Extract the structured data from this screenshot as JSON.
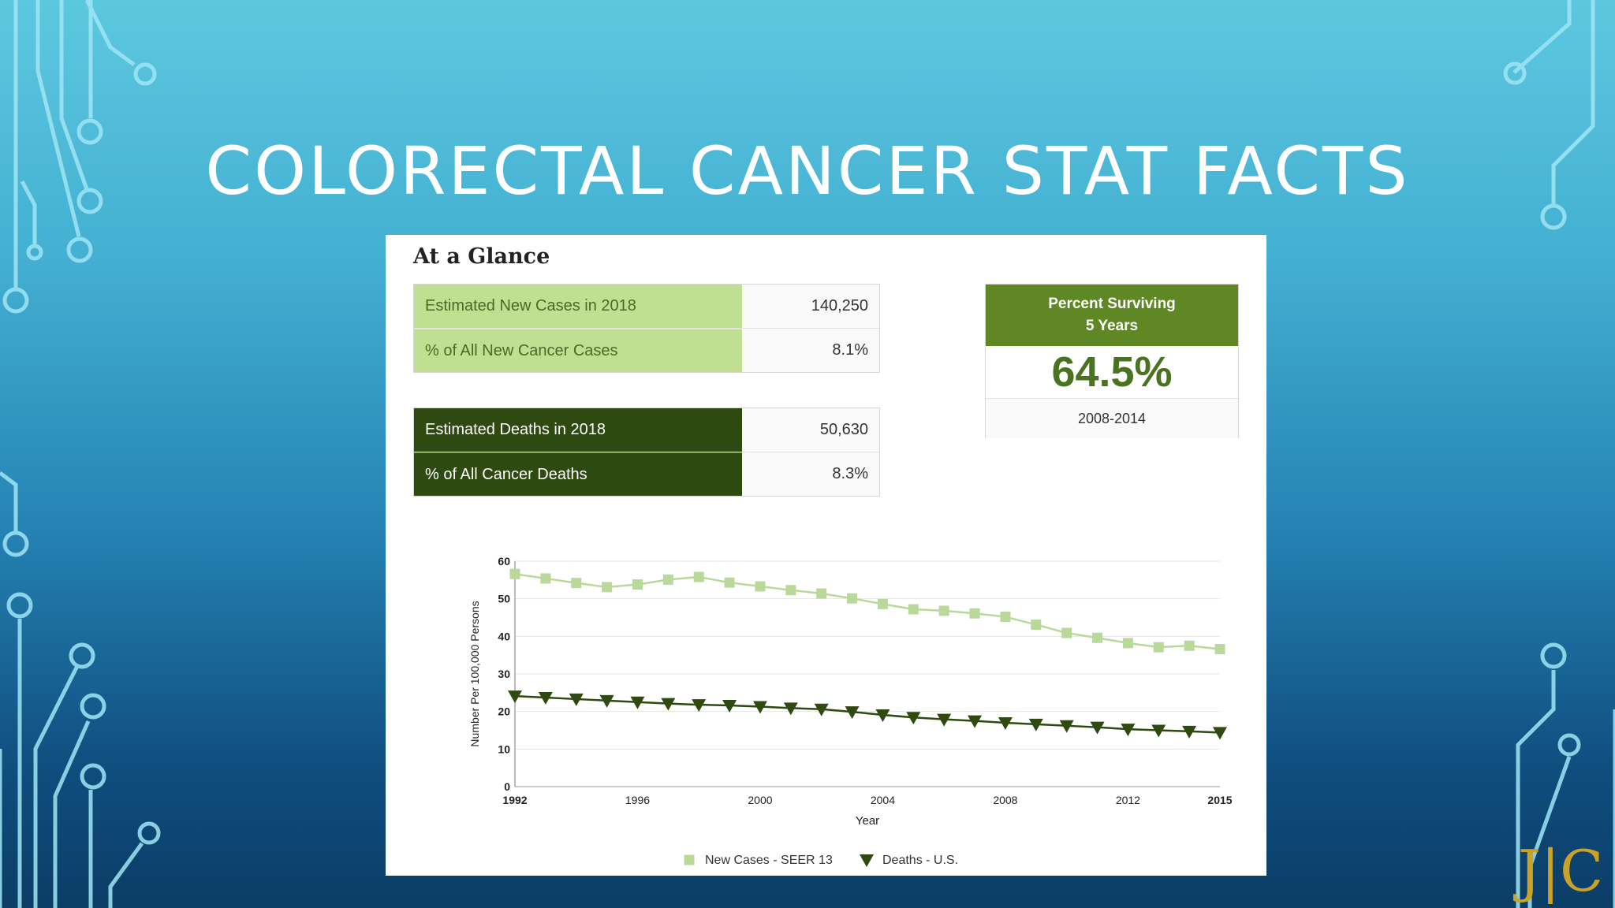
{
  "slide": {
    "title": "COLORECTAL CANCER STAT FACTS"
  },
  "panel": {
    "heading": "At a Glance",
    "new_cases_table": [
      {
        "label": "Estimated New Cases in 2018",
        "value": "140,250"
      },
      {
        "label": "% of All New Cancer Cases",
        "value": "8.1%"
      }
    ],
    "deaths_table": [
      {
        "label": "Estimated Deaths in 2018",
        "value": "50,630"
      },
      {
        "label": "% of All Cancer Deaths",
        "value": "8.3%"
      }
    ],
    "survival": {
      "heading_line1": "Percent Surviving",
      "heading_line2": "5 Years",
      "value": "64.5%",
      "period": "2008-2014"
    }
  },
  "chart_data": {
    "type": "line",
    "title": "",
    "xlabel": "Year",
    "ylabel": "Number Per 100,000 Persons",
    "xlim": [
      1992,
      2015
    ],
    "ylim": [
      0,
      60
    ],
    "x_ticks": [
      1992,
      1996,
      2000,
      2004,
      2008,
      2012,
      2015
    ],
    "y_ticks": [
      0,
      10,
      20,
      30,
      40,
      50,
      60
    ],
    "grid": true,
    "legend": "bottom",
    "x": [
      1992,
      1993,
      1994,
      1995,
      1996,
      1997,
      1998,
      1999,
      2000,
      2001,
      2002,
      2003,
      2004,
      2005,
      2006,
      2007,
      2008,
      2009,
      2010,
      2011,
      2012,
      2013,
      2014,
      2015
    ],
    "series": [
      {
        "name": "New Cases - SEER 13",
        "marker": "square",
        "color": "#b9d99a",
        "values": [
          56.6,
          55.4,
          54.2,
          53.1,
          53.8,
          55.1,
          55.8,
          54.3,
          53.3,
          52.3,
          51.4,
          50.1,
          48.6,
          47.2,
          46.8,
          46.1,
          45.2,
          43.1,
          40.9,
          39.6,
          38.2,
          37.1,
          37.5,
          36.6
        ]
      },
      {
        "name": "Deaths - U.S.",
        "marker": "triangle-down",
        "color": "#2f4a10",
        "values": [
          24.1,
          23.7,
          23.3,
          22.9,
          22.5,
          22.1,
          21.8,
          21.6,
          21.3,
          20.9,
          20.6,
          19.9,
          19.1,
          18.4,
          17.9,
          17.5,
          17.0,
          16.6,
          16.2,
          15.8,
          15.3,
          15.0,
          14.7,
          14.4
        ]
      }
    ]
  },
  "logo": {
    "text": "J|C"
  },
  "colors": {
    "accent_light": "#c0df91",
    "accent_dark": "#2f4a10",
    "survival_green": "#5f8723"
  }
}
